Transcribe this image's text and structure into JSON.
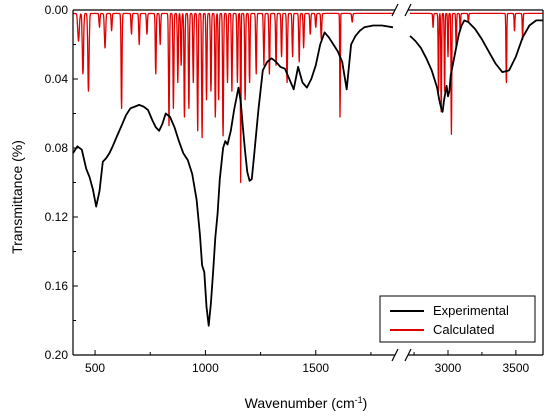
{
  "chart_data": {
    "type": "line",
    "xlabel": "Wavenumber (cm",
    "xlabel_sup": "-1",
    "xlabel_end": ")",
    "ylabel": "Transmittance (%)",
    "y_reversed": true,
    "ylim": [
      0.0,
      0.2
    ],
    "y_ticks": [
      "0.00",
      "0.04",
      "0.08",
      "0.12",
      "0.16",
      "0.20"
    ],
    "x_break": true,
    "x_segments": [
      {
        "range": [
          400,
          1850
        ],
        "ticks": [
          "500",
          "1000",
          "1500"
        ]
      },
      {
        "range": [
          2720,
          3700
        ],
        "ticks": [
          "3000",
          "3500"
        ]
      }
    ],
    "legend": {
      "position": "bottom-right"
    },
    "series": [
      {
        "name": "Experimental",
        "color": "#000000",
        "segments": [
          {
            "x": [
              400,
              420,
              440,
              460,
              475,
              490,
              505,
              520,
              535,
              550,
              565,
              580,
              600,
              620,
              640,
              660,
              680,
              700,
              720,
              740,
              760,
              775,
              790,
              805,
              820,
              840,
              860,
              880,
              900,
              920,
              940,
              960,
              975,
              985,
              995,
              1005,
              1015,
              1025,
              1035,
              1045,
              1055,
              1065,
              1080,
              1090,
              1100,
              1115,
              1130,
              1150,
              1160,
              1170,
              1180,
              1190,
              1200,
              1210,
              1220,
              1240,
              1260,
              1280,
              1300,
              1320,
              1340,
              1360,
              1380,
              1400,
              1420,
              1440,
              1460,
              1480,
              1500,
              1520,
              1540,
              1560,
              1580,
              1600,
              1620,
              1640,
              1660,
              1680,
              1700,
              1720,
              1760,
              1800,
              1850
            ],
            "y": [
              0.083,
              0.079,
              0.081,
              0.092,
              0.097,
              0.104,
              0.114,
              0.105,
              0.088,
              0.086,
              0.083,
              0.079,
              0.073,
              0.067,
              0.061,
              0.057,
              0.056,
              0.055,
              0.056,
              0.058,
              0.064,
              0.068,
              0.07,
              0.066,
              0.06,
              0.062,
              0.068,
              0.076,
              0.083,
              0.087,
              0.095,
              0.11,
              0.13,
              0.148,
              0.152,
              0.172,
              0.183,
              0.17,
              0.152,
              0.132,
              0.118,
              0.098,
              0.08,
              0.076,
              0.078,
              0.07,
              0.058,
              0.045,
              0.053,
              0.068,
              0.082,
              0.094,
              0.099,
              0.098,
              0.085,
              0.058,
              0.035,
              0.03,
              0.028,
              0.03,
              0.033,
              0.034,
              0.04,
              0.046,
              0.033,
              0.042,
              0.045,
              0.04,
              0.032,
              0.02,
              0.013,
              0.016,
              0.02,
              0.024,
              0.03,
              0.046,
              0.02,
              0.015,
              0.012,
              0.01,
              0.009,
              0.009,
              0.01
            ]
          },
          {
            "x": [
              2720,
              2760,
              2800,
              2840,
              2880,
              2900,
              2920,
              2935,
              2950,
              2960,
              2970,
              2980,
              2990,
              3000,
              3010,
              3020,
              3040,
              3060,
              3080,
              3100,
              3120,
              3150,
              3200,
              3250,
              3300,
              3350,
              3400,
              3450,
              3500,
              3550,
              3600,
              3650,
              3700
            ],
            "y": [
              0.015,
              0.018,
              0.022,
              0.028,
              0.035,
              0.04,
              0.045,
              0.052,
              0.057,
              0.059,
              0.053,
              0.048,
              0.044,
              0.05,
              0.047,
              0.038,
              0.03,
              0.022,
              0.014,
              0.009,
              0.006,
              0.007,
              0.011,
              0.017,
              0.024,
              0.031,
              0.036,
              0.035,
              0.027,
              0.016,
              0.009,
              0.006,
              0.006
            ]
          }
        ]
      },
      {
        "name": "Calculated",
        "color": "#e00000",
        "baseline": 0.002,
        "segments": [
          {
            "x0": 400,
            "x1": 1850,
            "peaks": [
              [
                425,
                0.016,
                5
              ],
              [
                445,
                0.035,
                4
              ],
              [
                470,
                0.045,
                4
              ],
              [
                520,
                0.008,
                3
              ],
              [
                545,
                0.02,
                4
              ],
              [
                575,
                0.01,
                3
              ],
              [
                620,
                0.055,
                3
              ],
              [
                665,
                0.012,
                3
              ],
              [
                700,
                0.018,
                3
              ],
              [
                735,
                0.012,
                3
              ],
              [
                775,
                0.035,
                3
              ],
              [
                795,
                0.018,
                3
              ],
              [
                835,
                0.065,
                3
              ],
              [
                855,
                0.055,
                3
              ],
              [
                875,
                0.04,
                3
              ],
              [
                890,
                0.03,
                3
              ],
              [
                905,
                0.06,
                3
              ],
              [
                925,
                0.055,
                3
              ],
              [
                945,
                0.04,
                3
              ],
              [
                965,
                0.068,
                3
              ],
              [
                985,
                0.072,
                3
              ],
              [
                1005,
                0.05,
                3
              ],
              [
                1025,
                0.045,
                3
              ],
              [
                1045,
                0.06,
                3
              ],
              [
                1060,
                0.05,
                3
              ],
              [
                1080,
                0.071,
                3
              ],
              [
                1100,
                0.04,
                3
              ],
              [
                1120,
                0.045,
                3
              ],
              [
                1145,
                0.04,
                3
              ],
              [
                1160,
                0.098,
                2
              ],
              [
                1180,
                0.05,
                3
              ],
              [
                1200,
                0.04,
                3
              ],
              [
                1230,
                0.035,
                3
              ],
              [
                1265,
                0.03,
                3
              ],
              [
                1290,
                0.035,
                3
              ],
              [
                1320,
                0.03,
                3
              ],
              [
                1345,
                0.025,
                3
              ],
              [
                1370,
                0.04,
                3
              ],
              [
                1395,
                0.025,
                3
              ],
              [
                1425,
                0.028,
                3
              ],
              [
                1445,
                0.02,
                3
              ],
              [
                1475,
                0.012,
                3
              ],
              [
                1500,
                0.008,
                3
              ],
              [
                1525,
                0.015,
                3
              ],
              [
                1610,
                0.06,
                2
              ],
              [
                1665,
                0.005,
                3
              ]
            ]
          },
          {
            "x0": 2720,
            "x1": 3700,
            "peaks": [
              [
                2890,
                0.008,
                4
              ],
              [
                2930,
                0.045,
                4
              ],
              [
                2950,
                0.057,
                4
              ],
              [
                2975,
                0.045,
                4
              ],
              [
                3000,
                0.025,
                4
              ],
              [
                3025,
                0.07,
                4
              ],
              [
                3060,
                0.02,
                4
              ],
              [
                3090,
                0.01,
                4
              ],
              [
                3150,
                0.005,
                4
              ],
              [
                3430,
                0.04,
                4
              ],
              [
                3490,
                0.01,
                4
              ],
              [
                3550,
                0.015,
                4
              ]
            ]
          }
        ]
      }
    ]
  }
}
